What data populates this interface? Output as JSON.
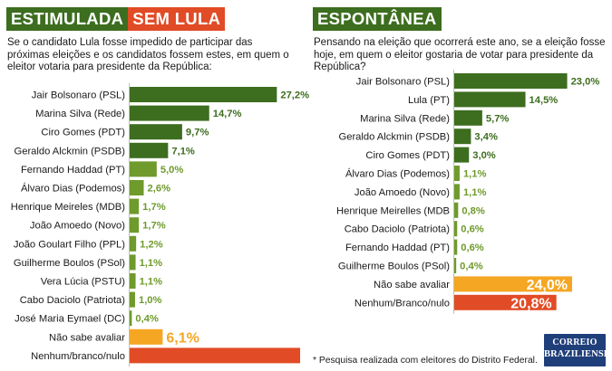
{
  "left": {
    "title_a": "ESTIMULADA",
    "title_b": "SEM LULA",
    "question": "Se o candidato Lula fosse impedido de participar das próximas eleições e os candidatos fossem estes, em quem o eleitor votaria para presidente da República:"
  },
  "right": {
    "title": "ESPONTÂNEA",
    "question": "Pensando na eleição que ocorrerá este ano, se a eleição fosse hoje, em quem o eleitor gostaria de votar para presidente da República?"
  },
  "footnote": "* Pesquisa realizada com eleitores do Distrito Federal.",
  "logo": {
    "line1": "CORREIO",
    "line2": "BRAZILIENSE"
  },
  "colors": {
    "dark_green": "#3d6d1f",
    "light_green": "#6f9a2c",
    "orange": "#f5a623",
    "red": "#e14b25"
  },
  "chart_data": [
    {
      "type": "bar",
      "orientation": "horizontal",
      "title": "ESTIMULADA SEM LULA",
      "categories": [
        "Jair Bolsonaro (PSL)",
        "Marina Silva (Rede)",
        "Ciro Gomes (PDT)",
        "Geraldo Alckmin (PSDB)",
        "Fernando Haddad (PT)",
        "Álvaro Dias (Podemos)",
        "Henrique Meireles (MDB)",
        "João Amoedo (Novo)",
        "João Goulart Filho (PPL)",
        "Guilherme Boulos (PSol)",
        "Vera Lúcia (PSTU)",
        "Cabo Daciolo (Patriota)",
        "José Maria Eymael (DC)",
        "Não sabe avaliar",
        "Nenhum/branco/nulo"
      ],
      "values": [
        27.2,
        14.7,
        9.7,
        7.1,
        5.0,
        2.6,
        1.7,
        1.7,
        1.2,
        1.1,
        1.1,
        1.0,
        0.4,
        6.1,
        null
      ],
      "value_labels": [
        "27,2%",
        "14,7%",
        "9,7%",
        "7,1%",
        "5,0%",
        "2,6%",
        "1,7%",
        "1,7%",
        "1,2%",
        "1,1%",
        "1,1%",
        "1,0%",
        "0,4%",
        "6,1%",
        ""
      ],
      "bar_colors": [
        "#3d6d1f",
        "#3d6d1f",
        "#3d6d1f",
        "#3d6d1f",
        "#6f9a2c",
        "#6f9a2c",
        "#6f9a2c",
        "#6f9a2c",
        "#6f9a2c",
        "#6f9a2c",
        "#6f9a2c",
        "#6f9a2c",
        "#6f9a2c",
        "#f5a623",
        "#e14b25"
      ],
      "label_colors": [
        "#3d6d1f",
        "#3d6d1f",
        "#3d6d1f",
        "#3d6d1f",
        "#6f9a2c",
        "#6f9a2c",
        "#6f9a2c",
        "#6f9a2c",
        "#6f9a2c",
        "#6f9a2c",
        "#6f9a2c",
        "#6f9a2c",
        "#6f9a2c",
        "#f5a623",
        "#e14b25"
      ],
      "big_label": [
        false,
        false,
        false,
        false,
        false,
        false,
        false,
        false,
        false,
        false,
        false,
        false,
        false,
        true,
        false
      ],
      "visible_value_for_unlabeled": [
        null,
        null,
        null,
        null,
        null,
        null,
        null,
        null,
        null,
        null,
        null,
        null,
        null,
        null,
        31.5
      ],
      "xlim": [
        0,
        32
      ]
    },
    {
      "type": "bar",
      "orientation": "horizontal",
      "title": "ESPONTÂNEA",
      "categories": [
        "Jair Bolsonaro (PSL)",
        "Lula (PT)",
        "Marina Silva (Rede)",
        "Geraldo Alckmin (PSDB)",
        "Ciro Gomes (PDT)",
        "Álvaro Dias (Podemos)",
        "João Amoedo (Novo)",
        "Henrique Meirelles (MDB",
        "Cabo Daciolo (Patriota)",
        "Fernando Haddad (PT)",
        "Guilherme Boulos (PSol)",
        "Não sabe avaliar",
        "Nenhum/Branco/nulo"
      ],
      "values": [
        23.0,
        14.5,
        5.7,
        3.4,
        3.0,
        1.1,
        1.1,
        0.8,
        0.6,
        0.6,
        0.4,
        24.0,
        20.8
      ],
      "value_labels": [
        "23,0%",
        "14,5%",
        "5,7%",
        "3,4%",
        "3,0%",
        "1,1%",
        "1,1%",
        "0,8%",
        "0,6%",
        "0,6%",
        "0,4%",
        "24,0%",
        "20,8%"
      ],
      "bar_colors": [
        "#3d6d1f",
        "#3d6d1f",
        "#3d6d1f",
        "#3d6d1f",
        "#3d6d1f",
        "#6f9a2c",
        "#6f9a2c",
        "#6f9a2c",
        "#6f9a2c",
        "#6f9a2c",
        "#6f9a2c",
        "#f5a623",
        "#e14b25"
      ],
      "label_colors": [
        "#3d6d1f",
        "#3d6d1f",
        "#3d6d1f",
        "#3d6d1f",
        "#3d6d1f",
        "#6f9a2c",
        "#6f9a2c",
        "#6f9a2c",
        "#6f9a2c",
        "#6f9a2c",
        "#6f9a2c",
        "#ffffff",
        "#ffffff"
      ],
      "big_label": [
        false,
        false,
        false,
        false,
        false,
        false,
        false,
        false,
        false,
        false,
        false,
        true,
        true
      ],
      "label_inside": [
        false,
        false,
        false,
        false,
        false,
        false,
        false,
        false,
        false,
        false,
        false,
        true,
        true
      ],
      "xlim": [
        0,
        24
      ]
    }
  ]
}
